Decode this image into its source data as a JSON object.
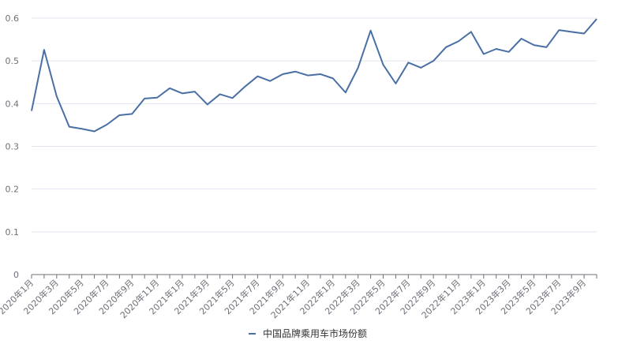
{
  "chart_data": {
    "type": "line",
    "colors": {
      "series": "#4a6fa5",
      "grid": "#e0e6f1",
      "axis": "#6e7079"
    },
    "y_ticks": [
      "0",
      "0.1",
      "0.2",
      "0.3",
      "0.4",
      "0.5",
      "0.6"
    ],
    "ylim": [
      0,
      0.6
    ],
    "grid": true,
    "legend_position": "bottom-center",
    "x_labels": [
      "2020年1月",
      "2020年3月",
      "2020年5月",
      "2020年7月",
      "2020年9月",
      "2020年11月",
      "2021年1月",
      "2021年3月",
      "2021年5月",
      "2021年7月",
      "2021年9月",
      "2021年11月",
      "2022年1月",
      "2022年3月",
      "2022年5月",
      "2022年7月",
      "2022年9月",
      "2022年11月",
      "2023年1月",
      "2023年3月",
      "2023年5月",
      "2023年7月",
      "2023年9月"
    ],
    "categories": [
      "2020年1月",
      "2020年2月",
      "2020年3月",
      "2020年4月",
      "2020年5月",
      "2020年6月",
      "2020年7月",
      "2020年8月",
      "2020年9月",
      "2020年10月",
      "2020年11月",
      "2020年12月",
      "2021年1月",
      "2021年2月",
      "2021年3月",
      "2021年4月",
      "2021年5月",
      "2021年6月",
      "2021年7月",
      "2021年8月",
      "2021年9月",
      "2021年10月",
      "2021年11月",
      "2021年12月",
      "2022年1月",
      "2022年2月",
      "2022年3月",
      "2022年4月",
      "2022年5月",
      "2022年6月",
      "2022年7月",
      "2022年8月",
      "2022年9月",
      "2022年10月",
      "2022年11月",
      "2022年12月",
      "2023年1月",
      "2023年2月",
      "2023年3月",
      "2023年4月",
      "2023年5月",
      "2023年6月",
      "2023年7月",
      "2023年8月",
      "2023年9月",
      "2023年10月"
    ],
    "series": [
      {
        "name": "中国品牌乘用车市场份额",
        "values": [
          0.383,
          0.526,
          0.417,
          0.346,
          0.341,
          0.335,
          0.351,
          0.373,
          0.376,
          0.412,
          0.414,
          0.436,
          0.424,
          0.428,
          0.398,
          0.422,
          0.413,
          0.44,
          0.464,
          0.453,
          0.469,
          0.475,
          0.466,
          0.469,
          0.459,
          0.426,
          0.484,
          0.571,
          0.491,
          0.447,
          0.496,
          0.484,
          0.5,
          0.532,
          0.546,
          0.568,
          0.516,
          0.528,
          0.521,
          0.552,
          0.537,
          0.532,
          0.572,
          0.568,
          0.564,
          0.598
        ]
      }
    ]
  }
}
